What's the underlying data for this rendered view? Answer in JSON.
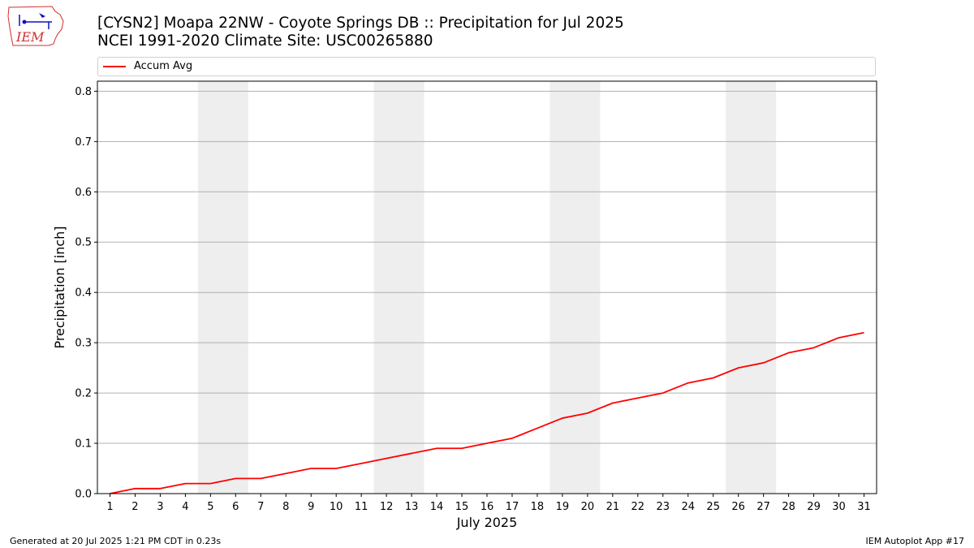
{
  "header": {
    "logo_text": "IEM",
    "title_line1": "[CYSN2] Moapa 22NW - Coyote Springs DB :: Precipitation for Jul 2025",
    "title_line2": "NCEI 1991-2020 Climate Site: USC00265880"
  },
  "legend": {
    "label": "Accum Avg",
    "color": "#ff0000"
  },
  "footer": {
    "generated": "Generated at 20 Jul 2025 1:21 PM CDT in 0.23s",
    "app": "IEM Autoplot App #17"
  },
  "chart_data": {
    "type": "line",
    "title": "",
    "xlabel": "July 2025",
    "ylabel": "Precipitation [inch]",
    "ylim": [
      0,
      0.82
    ],
    "xlim": [
      0.5,
      31.5
    ],
    "grid": "horizontal",
    "legend_position": "top",
    "categories": [
      "1",
      "2",
      "3",
      "4",
      "5",
      "6",
      "7",
      "8",
      "9",
      "10",
      "11",
      "12",
      "13",
      "14",
      "15",
      "16",
      "17",
      "18",
      "19",
      "20",
      "21",
      "22",
      "23",
      "24",
      "25",
      "26",
      "27",
      "28",
      "29",
      "30",
      "31"
    ],
    "yticks": [
      "0.0",
      "0.1",
      "0.2",
      "0.3",
      "0.4",
      "0.5",
      "0.6",
      "0.7",
      "0.8"
    ],
    "weekend_shading": [
      [
        5,
        6
      ],
      [
        12,
        13
      ],
      [
        19,
        20
      ],
      [
        26,
        27
      ]
    ],
    "shade_color": "#eeeeee",
    "series": [
      {
        "name": "Accum Avg",
        "color": "#ff0000",
        "x": [
          1,
          2,
          3,
          4,
          5,
          6,
          7,
          8,
          9,
          10,
          11,
          12,
          13,
          14,
          15,
          16,
          17,
          18,
          19,
          20,
          21,
          22,
          23,
          24,
          25,
          26,
          27,
          28,
          29,
          30,
          31
        ],
        "values": [
          0.0,
          0.01,
          0.01,
          0.02,
          0.02,
          0.03,
          0.03,
          0.04,
          0.05,
          0.05,
          0.06,
          0.07,
          0.08,
          0.09,
          0.09,
          0.1,
          0.11,
          0.13,
          0.15,
          0.16,
          0.18,
          0.19,
          0.2,
          0.22,
          0.23,
          0.25,
          0.26,
          0.28,
          0.29,
          0.31,
          0.32
        ]
      }
    ]
  }
}
